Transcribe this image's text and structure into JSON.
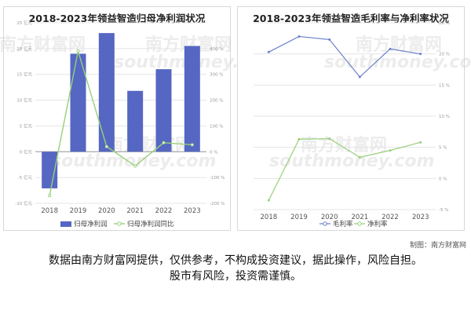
{
  "credit": "制图：南方财富网",
  "disclaimer": {
    "line1": "数据由南方财富网提供，仅供参考，不构成投资建议，据此操作，风险自担。",
    "line2": "股市有风险，投资需谨慎。"
  },
  "watermark": {
    "brand": "南方财富网",
    "url": "southmoney.com"
  },
  "colors": {
    "bar": "#5567c2",
    "green": "#98cf7a",
    "blue": "#6a7fc8",
    "grid": "#e4e4e4",
    "axis_text": "#999999"
  },
  "chart_data": [
    {
      "type": "bar",
      "title": "2018-2023年领益智造归母净利润状况",
      "categories": [
        "2018",
        "2019",
        "2020",
        "2021",
        "2022",
        "2023"
      ],
      "y_ticks": [
        "-10 亿元",
        "-5 亿元",
        "0 亿元",
        "5 亿元",
        "10 亿元",
        "15 亿元",
        "20 亿元",
        "25 亿元"
      ],
      "y2_ticks": [
        "-200 %",
        "-100 %",
        "0 %",
        "100 %",
        "200 %",
        "300 %",
        "400 %"
      ],
      "ylim": [
        -10,
        25
      ],
      "y2lim": [
        -200,
        400
      ],
      "series": [
        {
          "name": "归母净利润",
          "kind": "bar",
          "axis": "left",
          "values": [
            -7.1,
            19.0,
            23.0,
            11.8,
            16.0,
            20.5
          ]
        },
        {
          "name": "归母净利润同比",
          "kind": "line",
          "axis": "right",
          "values": [
            -170,
            390,
            20,
            -55,
            35,
            27
          ]
        }
      ],
      "legend": "bottom"
    },
    {
      "type": "line",
      "title": "2018-2023年领益智造毛利率与净利率状况",
      "categories": [
        "2018",
        "2019",
        "2020",
        "2021",
        "2022",
        "2023"
      ],
      "y_ticks": [
        "-5 %",
        "0 %",
        "5 %",
        "10 %",
        "15 %",
        "20 %",
        "25 %"
      ],
      "ylim": [
        -5,
        25
      ],
      "series": [
        {
          "name": "毛利率",
          "values": [
            20.3,
            22.8,
            22.3,
            16.3,
            20.8,
            20.0
          ]
        },
        {
          "name": "净利率",
          "values": [
            -3.5,
            6.3,
            6.4,
            3.4,
            4.5,
            5.8
          ]
        }
      ],
      "legend": "bottom"
    }
  ]
}
